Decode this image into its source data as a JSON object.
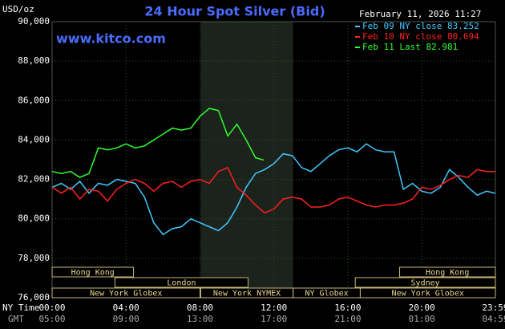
{
  "chart_data": {
    "type": "line",
    "title": "24 Hour Spot Silver (Bid)",
    "date": "February 11, 2026 11:27",
    "source": "www.kitco.com",
    "y_label": "USD/oz",
    "x_row_labels": [
      "NY Time",
      "GMT"
    ],
    "xlim": [
      0,
      23.98
    ],
    "xticks": [
      {
        "value": 0,
        "label": "00:00"
      },
      {
        "value": 4,
        "label": "04:00"
      },
      {
        "value": 8,
        "label": "08:00"
      },
      {
        "value": 12,
        "label": "12:00"
      },
      {
        "value": 16,
        "label": "16:00"
      },
      {
        "value": 20,
        "label": "20:00"
      },
      {
        "value": 23.98,
        "label": "23:59"
      }
    ],
    "gmt_labels": [
      "05:00",
      "09:00",
      "13:00",
      "17:00",
      "21:00",
      "01:00",
      "04:59"
    ],
    "ylim": [
      76000,
      90000
    ],
    "yticks": [
      {
        "value": 76000,
        "label": "76,000"
      },
      {
        "value": 78000,
        "label": "78,000"
      },
      {
        "value": 80000,
        "label": "80,000"
      },
      {
        "value": 82000,
        "label": "82,000"
      },
      {
        "value": 84000,
        "label": "84,000"
      },
      {
        "value": 86000,
        "label": "86,000"
      },
      {
        "value": 88000,
        "label": "88,000"
      },
      {
        "value": 90000,
        "label": "90,000"
      }
    ],
    "grid": true,
    "series": [
      {
        "name": "Feb 09 NY close 83.252",
        "color": "#40c8ff",
        "x": [
          0,
          0.5,
          1,
          1.5,
          2,
          2.5,
          3,
          3.5,
          4,
          4.5,
          5,
          5.5,
          6,
          6.5,
          7,
          7.5,
          8,
          8.5,
          9,
          9.5,
          10,
          10.5,
          11,
          11.5,
          12,
          12.5,
          13,
          13.5,
          14,
          14.5,
          15,
          15.5,
          16,
          16.5,
          17,
          17.5,
          18,
          18.5,
          19,
          19.5,
          20,
          20.5,
          21,
          21.5,
          22,
          22.5,
          23,
          23.5,
          23.98
        ],
        "values": [
          81600,
          81800,
          81500,
          81900,
          81300,
          81800,
          81700,
          82000,
          81900,
          81800,
          81100,
          79800,
          79200,
          79500,
          79600,
          80000,
          79800,
          79600,
          79400,
          79800,
          80600,
          81600,
          82300,
          82500,
          82800,
          83300,
          83200,
          82600,
          82400,
          82800,
          83200,
          83500,
          83600,
          83400,
          83800,
          83500,
          83400,
          83400,
          81500,
          81800,
          81400,
          81300,
          81600,
          82500,
          82100,
          81600,
          81200,
          81400,
          81300
        ]
      },
      {
        "name": "Feb 10 NY close 80.694",
        "color": "#ff2020",
        "x": [
          0,
          0.5,
          1,
          1.5,
          2,
          2.5,
          3,
          3.5,
          4,
          4.5,
          5,
          5.5,
          6,
          6.5,
          7,
          7.5,
          8,
          8.5,
          9,
          9.5,
          10,
          10.5,
          11,
          11.5,
          12,
          12.5,
          13,
          13.5,
          14,
          14.5,
          15,
          15.5,
          16,
          16.5,
          17,
          17.5,
          18,
          18.5,
          19,
          19.5,
          20,
          20.5,
          21,
          21.5,
          22,
          22.5,
          23,
          23.5,
          23.98
        ],
        "values": [
          81600,
          81300,
          81600,
          81000,
          81500,
          81400,
          80900,
          81500,
          81800,
          82000,
          81800,
          81400,
          81800,
          81900,
          81600,
          81900,
          82000,
          81800,
          82400,
          82600,
          81600,
          81200,
          80700,
          80300,
          80500,
          81000,
          81100,
          81000,
          80600,
          80600,
          80700,
          81000,
          81100,
          80900,
          80700,
          80600,
          80700,
          80700,
          80800,
          81000,
          81600,
          81500,
          81700,
          82000,
          82200,
          82100,
          82500,
          82400,
          82400
        ]
      },
      {
        "name": "Feb 11 Last 82.981",
        "color": "#30ff30",
        "x": [
          0,
          0.5,
          1,
          1.5,
          2,
          2.5,
          3,
          3.5,
          4,
          4.5,
          5,
          5.5,
          6,
          6.5,
          7,
          7.5,
          8,
          8.5,
          9,
          9.5,
          10,
          10.5,
          11,
          11.45
        ],
        "values": [
          82400,
          82300,
          82400,
          82100,
          82300,
          83600,
          83500,
          83600,
          83800,
          83600,
          83700,
          84000,
          84300,
          84600,
          84500,
          84600,
          85200,
          85600,
          85500,
          84200,
          84800,
          84000,
          83100,
          82981
        ]
      }
    ],
    "sessions": [
      {
        "name": "Hong Kong",
        "start": 0,
        "end": 4.4,
        "row": 1
      },
      {
        "name": "London",
        "start": 3.4,
        "end": 10.6,
        "row": 2
      },
      {
        "name": "New York Globex",
        "start": 0,
        "end": 8,
        "row": 3
      },
      {
        "name": "New York NYMEX",
        "start": 8.04,
        "end": 13.04,
        "row": 3,
        "shaded": true
      },
      {
        "name": "NY Globex",
        "start": 13.04,
        "end": 16.67,
        "row": 3
      },
      {
        "name": "Sydney",
        "start": 16.4,
        "end": 23.98,
        "row": 2
      },
      {
        "name": "Hong Kong",
        "start": 18.8,
        "end": 23.98,
        "row": 1
      },
      {
        "name": "New York Globex",
        "start": 16.67,
        "end": 23.98,
        "row": 3
      }
    ]
  }
}
